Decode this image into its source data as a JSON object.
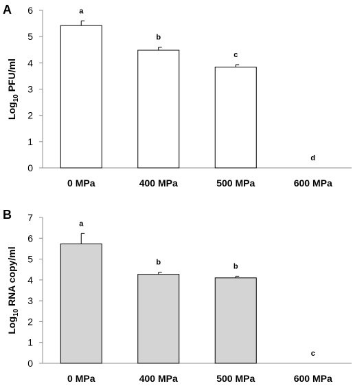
{
  "chart_data": [
    {
      "type": "bar",
      "panel": "A",
      "categories": [
        "0 MPa",
        "400 MPa",
        "500 MPa",
        "600 MPa"
      ],
      "values": [
        5.42,
        4.48,
        3.84,
        0
      ],
      "errors": [
        0.18,
        0.12,
        0.09,
        0
      ],
      "significance": [
        "a",
        "b",
        "c",
        "d"
      ],
      "ylabel_main": "Log",
      "ylabel_sub": "10",
      "ylabel_rest": " PFU/ml",
      "ylim": [
        0,
        6
      ],
      "yticks": [
        0,
        1,
        2,
        3,
        4,
        5,
        6
      ],
      "bar_color": "#ffffff",
      "grid": false
    },
    {
      "type": "bar",
      "panel": "B",
      "categories": [
        "0 MPa",
        "400 MPa",
        "500 MPa",
        "600 MPa"
      ],
      "values": [
        5.73,
        4.27,
        4.1,
        0
      ],
      "errors": [
        0.5,
        0.1,
        0.08,
        0
      ],
      "significance": [
        "a",
        "b",
        "b",
        "c"
      ],
      "ylabel_main": "Log",
      "ylabel_sub": "10",
      "ylabel_rest": " RNA copy/ml",
      "ylim": [
        0,
        7
      ],
      "yticks": [
        0,
        1,
        2,
        3,
        4,
        5,
        6,
        7
      ],
      "bar_color": "#d4d4d4",
      "grid": false
    }
  ]
}
